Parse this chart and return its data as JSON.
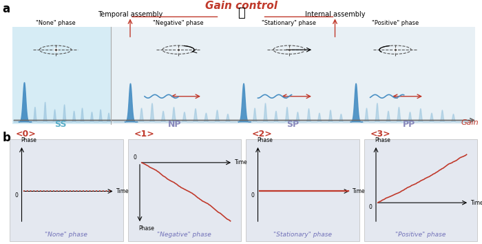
{
  "title": "Gain control",
  "panel_a_label": "a",
  "panel_b_label": "b",
  "ss_label": "SS",
  "np_label": "NP",
  "sp_label": "SP",
  "pp_label": "PP",
  "gain_label": "Gain",
  "temporal_assembly": "Temporal assembly",
  "internal_assembly": "Internal assembly",
  "phase_labels": [
    "\"None\" phase",
    "\"Negative\" phase",
    "\"Stationary\" phase",
    "\"Positive\" phase"
  ],
  "phase_tags": [
    "<0>",
    "<1>",
    "<2>",
    "<3>"
  ],
  "phase_bottom_labels": [
    "\"None\" phase",
    "\"Negative\" phase",
    "\"Stationary\" phase",
    "\"Positive\" phase"
  ],
  "red_color": "#c0392b",
  "blue_soliton": "#4a90c4",
  "blue_soliton_light": "#a0c8e0",
  "title_color": "#c0392b",
  "ss_bg": "#d6ecf5",
  "rest_bg": "#e8f0f5",
  "box_bg": "#e4e8f0"
}
